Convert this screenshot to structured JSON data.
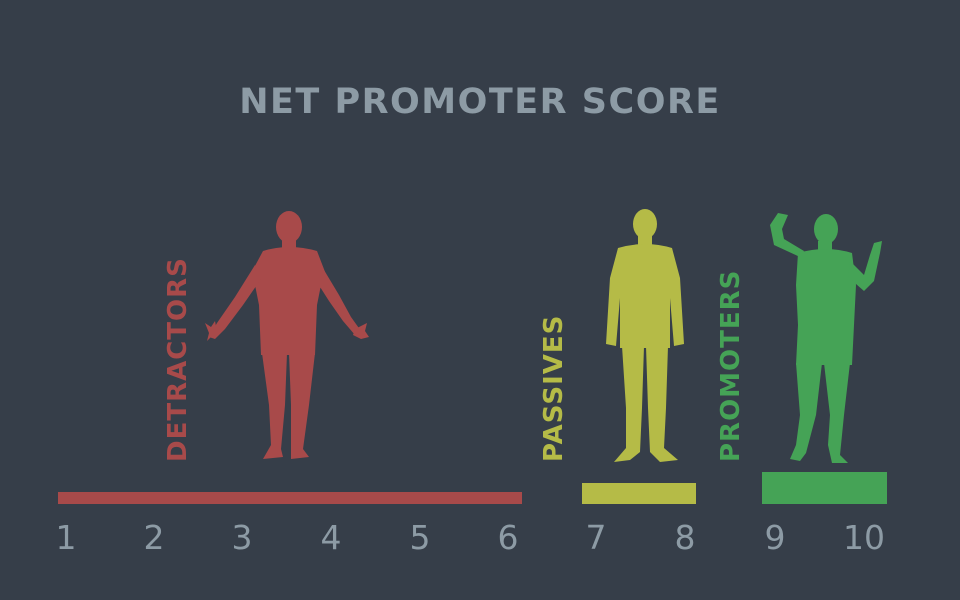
{
  "title": "NET PROMOTER SCORE",
  "colors": {
    "background": "#363e49",
    "text": "#8d9ba5",
    "detractors": "#a84a4a",
    "passives": "#b5bb47",
    "promoters": "#45a356"
  },
  "groups": [
    {
      "label": "DETRACTORS",
      "range": [
        1,
        6
      ],
      "icon": "frustrated-person-icon"
    },
    {
      "label": "PASSIVES",
      "range": [
        7,
        8
      ],
      "icon": "neutral-person-icon"
    },
    {
      "label": "PROMOTERS",
      "range": [
        9,
        10
      ],
      "icon": "cheering-person-icon"
    }
  ],
  "scale": [
    "1",
    "2",
    "3",
    "4",
    "5",
    "6",
    "7",
    "8",
    "9",
    "10"
  ]
}
